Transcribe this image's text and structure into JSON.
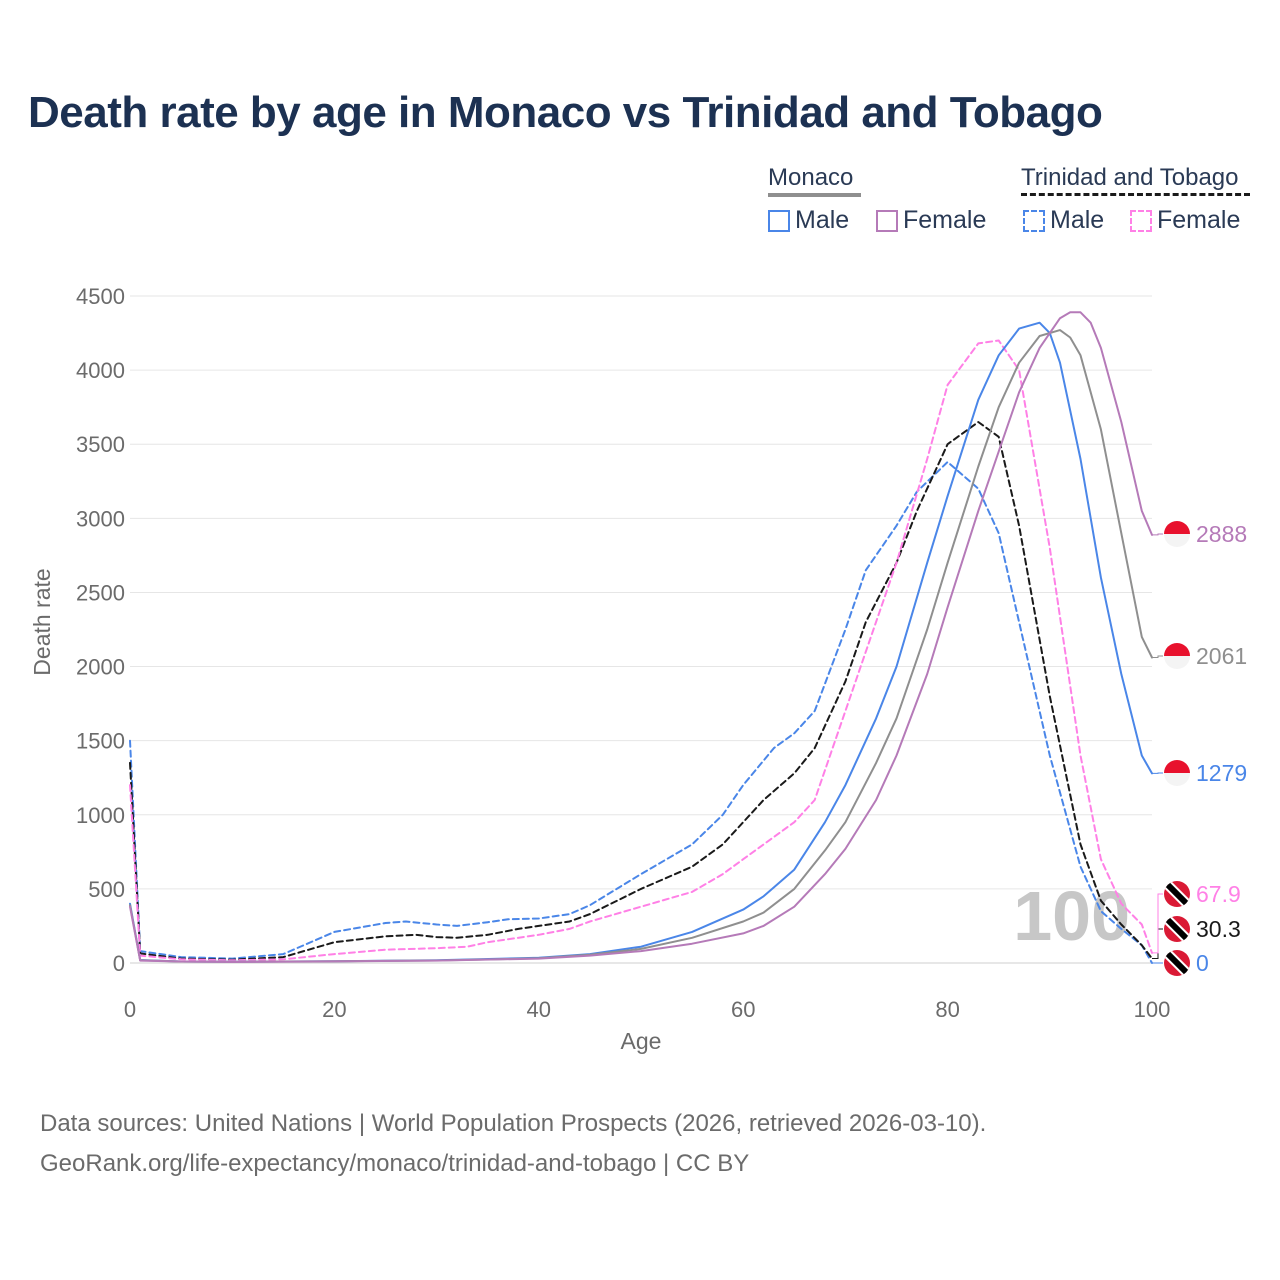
{
  "title": "Death rate by age in Monaco vs Trinidad and Tobago",
  "legend": {
    "groups": [
      {
        "name": "Monaco",
        "items": [
          "Male",
          "Female"
        ]
      },
      {
        "name": "Trinidad and Tobago",
        "items": [
          "Male",
          "Female"
        ]
      }
    ]
  },
  "sources": {
    "line1": "Data sources: United Nations | World Population Prospects (2026, retrieved 2026-03-10).",
    "line2": "GeoRank.org/life-expectancy/monaco/trinidad-and-tobago | CC BY"
  },
  "colors": {
    "monaco_male": "#4a86e8",
    "monaco_female": "#b57ab8",
    "monaco_total": "#8f8f8f",
    "tt_male": "#4a86e8",
    "tt_female": "#ff80e6",
    "tt_total": "#1a1a1a",
    "title": "#1c3152",
    "grid": "#e6e6e6"
  },
  "chart_data": {
    "type": "line",
    "title": "Death rate by age in Monaco vs Trinidad and Tobago",
    "xlabel": "Age",
    "ylabel": "Death rate",
    "xlim": [
      0,
      100
    ],
    "ylim": [
      0,
      4500
    ],
    "xticks": [
      0,
      20,
      40,
      60,
      80,
      100
    ],
    "yticks": [
      0,
      500,
      1000,
      1500,
      2000,
      2500,
      3000,
      3500,
      4000,
      4500
    ],
    "watermark": "100",
    "series": [
      {
        "name": "Trinidad and Tobago Male",
        "country": "Trinidad and Tobago",
        "sex": "Male",
        "dashed": true,
        "color": "#4a86e8",
        "x": [
          0,
          1,
          5,
          10,
          15,
          20,
          25,
          27,
          30,
          32,
          35,
          37,
          40,
          43,
          45,
          50,
          55,
          58,
          60,
          63,
          65,
          67,
          70,
          72,
          75,
          77,
          80,
          83,
          85,
          87,
          90,
          93,
          95,
          97,
          99,
          100
        ],
        "y": [
          1500,
          80,
          40,
          30,
          60,
          210,
          270,
          280,
          260,
          250,
          275,
          295,
          300,
          330,
          390,
          600,
          800,
          1000,
          1200,
          1450,
          1550,
          1700,
          2250,
          2650,
          2950,
          3180,
          3380,
          3200,
          2900,
          2300,
          1400,
          650,
          350,
          230,
          120,
          0
        ],
        "end_label": "0"
      },
      {
        "name": "Trinidad and Tobago Total",
        "country": "Trinidad and Tobago",
        "sex": "Total",
        "dashed": true,
        "color": "#1a1a1a",
        "x": [
          0,
          1,
          5,
          10,
          15,
          20,
          25,
          28,
          30,
          32,
          35,
          38,
          40,
          43,
          45,
          50,
          55,
          58,
          60,
          62,
          65,
          67,
          70,
          72,
          75,
          77,
          80,
          83,
          85,
          87,
          90,
          93,
          95,
          97,
          99,
          100
        ],
        "y": [
          1350,
          65,
          30,
          22,
          40,
          140,
          180,
          190,
          175,
          170,
          190,
          230,
          250,
          280,
          330,
          500,
          650,
          800,
          950,
          1100,
          1280,
          1450,
          1900,
          2300,
          2700,
          3050,
          3500,
          3650,
          3550,
          2950,
          1800,
          800,
          420,
          260,
          120,
          30.3
        ],
        "end_label": "30.3"
      },
      {
        "name": "Trinidad and Tobago Female",
        "country": "Trinidad and Tobago",
        "sex": "Female",
        "dashed": true,
        "color": "#ff80e6",
        "x": [
          0,
          1,
          5,
          10,
          15,
          20,
          25,
          30,
          33,
          35,
          40,
          43,
          45,
          50,
          55,
          58,
          60,
          63,
          65,
          67,
          70,
          72,
          75,
          78,
          80,
          83,
          85,
          87,
          90,
          93,
          95,
          97,
          99,
          100
        ],
        "y": [
          1200,
          50,
          25,
          18,
          25,
          60,
          90,
          100,
          110,
          140,
          190,
          230,
          280,
          380,
          480,
          600,
          700,
          850,
          950,
          1100,
          1700,
          2100,
          2700,
          3400,
          3900,
          4180,
          4200,
          4000,
          2800,
          1400,
          700,
          400,
          260,
          67.9
        ],
        "end_label": "67.9"
      },
      {
        "name": "Monaco Male",
        "country": "Monaco",
        "sex": "Male",
        "dashed": false,
        "color": "#4a86e8",
        "x": [
          0,
          1,
          5,
          10,
          20,
          30,
          40,
          45,
          50,
          55,
          60,
          62,
          65,
          68,
          70,
          73,
          75,
          78,
          80,
          83,
          85,
          87,
          89,
          90,
          91,
          93,
          95,
          97,
          99,
          100
        ],
        "y": [
          400,
          20,
          10,
          8,
          12,
          18,
          35,
          60,
          110,
          210,
          360,
          450,
          630,
          950,
          1200,
          1650,
          2000,
          2700,
          3150,
          3800,
          4100,
          4280,
          4320,
          4250,
          4050,
          3400,
          2600,
          1950,
          1400,
          1279
        ],
        "end_label": "1279"
      },
      {
        "name": "Monaco Total",
        "country": "Monaco",
        "sex": "Total",
        "dashed": false,
        "color": "#8f8f8f",
        "x": [
          0,
          1,
          5,
          10,
          20,
          30,
          40,
          45,
          50,
          55,
          60,
          62,
          65,
          68,
          70,
          73,
          75,
          78,
          80,
          83,
          85,
          87,
          89,
          91,
          92,
          93,
          95,
          97,
          99,
          100
        ],
        "y": [
          390,
          18,
          10,
          8,
          12,
          17,
          32,
          55,
          95,
          170,
          280,
          340,
          500,
          760,
          950,
          1350,
          1650,
          2250,
          2700,
          3350,
          3750,
          4050,
          4230,
          4270,
          4220,
          4100,
          3600,
          2900,
          2200,
          2061
        ],
        "end_label": "2061"
      },
      {
        "name": "Monaco Female",
        "country": "Monaco",
        "sex": "Female",
        "dashed": false,
        "color": "#b57ab8",
        "x": [
          0,
          1,
          5,
          10,
          20,
          30,
          40,
          45,
          50,
          55,
          60,
          62,
          65,
          68,
          70,
          73,
          75,
          78,
          80,
          83,
          85,
          87,
          89,
          91,
          92,
          93,
          94,
          95,
          97,
          99,
          100
        ],
        "y": [
          380,
          16,
          10,
          7,
          11,
          16,
          30,
          50,
          80,
          130,
          200,
          250,
          380,
          600,
          770,
          1100,
          1400,
          1950,
          2400,
          3050,
          3450,
          3850,
          4150,
          4350,
          4390,
          4390,
          4320,
          4150,
          3650,
          3050,
          2888
        ],
        "end_label": "2888"
      }
    ]
  }
}
